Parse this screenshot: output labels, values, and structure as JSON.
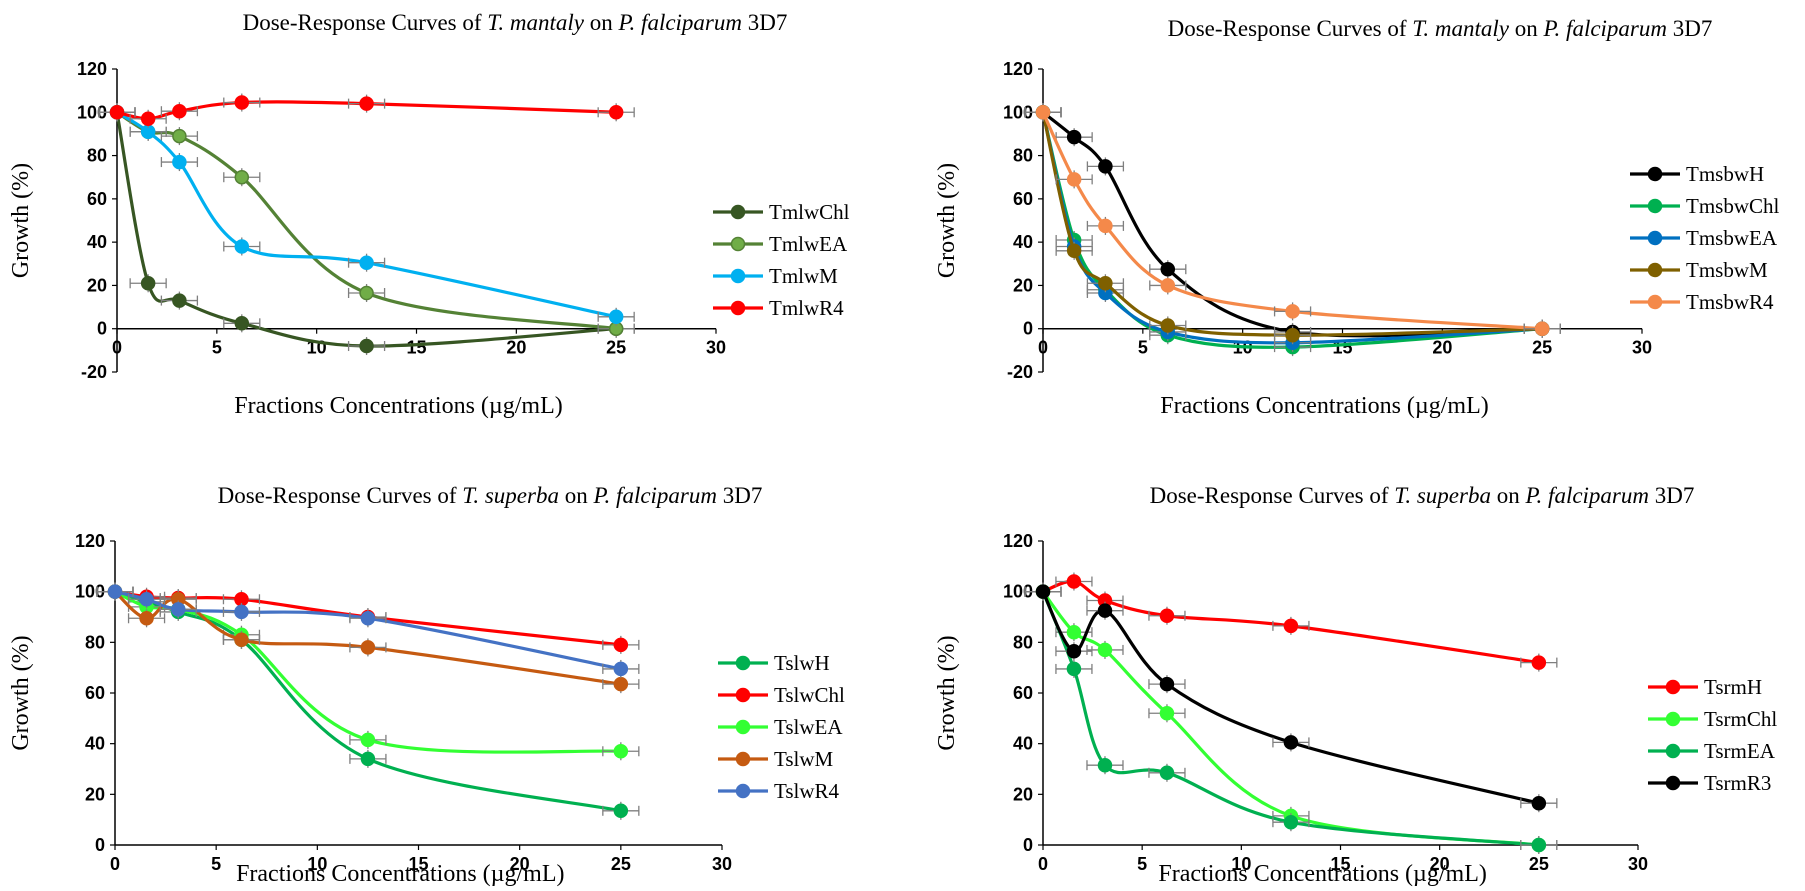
{
  "chart_data": [
    {
      "type": "line",
      "title_parts": [
        {
          "text": "Dose-Response Curves of ",
          "italic": false
        },
        {
          "text": "T. mantaly",
          "italic": true
        },
        {
          "text": " on ",
          "italic": false
        },
        {
          "text": "P. falciparum",
          "italic": true
        },
        {
          "text": " 3D7",
          "italic": false
        }
      ],
      "xlabel": "Fractions Concentrations (µg/mL)",
      "ylabel": "Growth (%)",
      "xlim": [
        0,
        30
      ],
      "ylim": [
        -20,
        120
      ],
      "xticks": [
        0,
        5,
        10,
        15,
        20,
        25,
        30
      ],
      "yticks": [
        -20,
        0,
        20,
        40,
        60,
        80,
        100,
        120
      ],
      "legend_position": "right",
      "x": [
        0,
        1.56,
        3.125,
        6.25,
        12.5,
        25
      ],
      "series": [
        {
          "name": "TmlwChl",
          "color": "#375623",
          "fill": "#375623",
          "values": [
            100,
            21,
            13,
            2.5,
            -8,
            0
          ]
        },
        {
          "name": "TmlwEA",
          "color": "#548235",
          "fill": "#70ad47",
          "values": [
            100,
            91,
            89,
            70,
            16.5,
            0
          ]
        },
        {
          "name": "TmlwM",
          "color": "#00b0f0",
          "fill": "#00b0f0",
          "values": [
            100,
            91,
            77,
            38,
            30.5,
            5.5
          ]
        },
        {
          "name": "TmlwR4",
          "color": "#ff0000",
          "fill": "#ff0000",
          "values": [
            100,
            97,
            100.5,
            104.5,
            104,
            100
          ]
        }
      ]
    },
    {
      "type": "line",
      "title_parts": [
        {
          "text": "Dose-Response Curves of ",
          "italic": false
        },
        {
          "text": "T. mantaly",
          "italic": true
        },
        {
          "text": " on ",
          "italic": false
        },
        {
          "text": "P. falciparum",
          "italic": true
        },
        {
          "text": " 3D7",
          "italic": false
        }
      ],
      "xlabel": "Fractions Concentrations (µg/mL)",
      "ylabel": "Growth (%)",
      "xlim": [
        0,
        30
      ],
      "ylim": [
        -20,
        120
      ],
      "xticks": [
        0,
        5,
        10,
        15,
        20,
        25,
        30
      ],
      "yticks": [
        -20,
        0,
        20,
        40,
        60,
        80,
        100,
        120
      ],
      "legend_position": "right",
      "x": [
        0,
        1.56,
        3.125,
        6.25,
        12.5,
        25
      ],
      "series": [
        {
          "name": "TmsbwH",
          "color": "#000000",
          "fill": "#000000",
          "values": [
            100,
            88.5,
            75,
            27.5,
            -1.5,
            0
          ]
        },
        {
          "name": "TmsbwChl",
          "color": "#00b050",
          "fill": "#00b050",
          "values": [
            100,
            41,
            18,
            -3,
            -8.5,
            0
          ]
        },
        {
          "name": "TmsbwEA",
          "color": "#0070c0",
          "fill": "#0070c0",
          "values": [
            100,
            38,
            16.5,
            -1.5,
            -6.5,
            0
          ]
        },
        {
          "name": "TmsbwM",
          "color": "#7f6000",
          "fill": "#7f6000",
          "values": [
            100,
            36,
            21,
            1.5,
            -3,
            0
          ]
        },
        {
          "name": "TmsbwR4",
          "color": "#f4894a",
          "fill": "#f4894a",
          "values": [
            100,
            69,
            47.5,
            20,
            8,
            0
          ]
        }
      ]
    },
    {
      "type": "line",
      "title_parts": [
        {
          "text": "Dose-Response Curves of ",
          "italic": false
        },
        {
          "text": "T. superba",
          "italic": true
        },
        {
          "text": " on ",
          "italic": false
        },
        {
          "text": "P. falciparum",
          "italic": true
        },
        {
          "text": " 3D7",
          "italic": false
        }
      ],
      "xlabel": "Fractions Concentrations (µg/mL)",
      "ylabel": "Growth (%)",
      "xlim": [
        0,
        30
      ],
      "ylim": [
        0,
        120
      ],
      "xticks": [
        0,
        5,
        10,
        15,
        20,
        25,
        30
      ],
      "yticks": [
        0,
        20,
        40,
        60,
        80,
        100,
        120
      ],
      "legend_position": "right",
      "x": [
        0,
        1.56,
        3.125,
        6.25,
        12.5,
        25
      ],
      "series": [
        {
          "name": "TslwH",
          "color": "#00b050",
          "fill": "#00b050",
          "values": [
            100,
            96,
            92,
            81,
            34,
            13.5
          ]
        },
        {
          "name": "TslwChl",
          "color": "#ff0000",
          "fill": "#ff0000",
          "values": [
            100,
            98,
            97.5,
            97,
            90,
            79
          ]
        },
        {
          "name": "TslwEA",
          "color": "#33ff33",
          "fill": "#33ff33",
          "values": [
            100,
            94,
            93,
            83,
            41.5,
            37
          ]
        },
        {
          "name": "TslwM",
          "color": "#c55a11",
          "fill": "#c55a11",
          "values": [
            100,
            89.5,
            97,
            81,
            78,
            63.5
          ]
        },
        {
          "name": "TslwR4",
          "color": "#4472c4",
          "fill": "#4472c4",
          "values": [
            100,
            97,
            93,
            92,
            89.5,
            69.5
          ]
        }
      ]
    },
    {
      "type": "line",
      "title_parts": [
        {
          "text": "Dose-Response Curves of ",
          "italic": false
        },
        {
          "text": "T. superba",
          "italic": true
        },
        {
          "text": " on ",
          "italic": false
        },
        {
          "text": "P. falciparum",
          "italic": true
        },
        {
          "text": " 3D7",
          "italic": false
        }
      ],
      "xlabel": "Fractions Concentrations (µg/mL)",
      "ylabel": "Growth (%)",
      "xlim": [
        0,
        30
      ],
      "ylim": [
        0,
        120
      ],
      "xticks": [
        0,
        5,
        10,
        15,
        20,
        25,
        30
      ],
      "yticks": [
        0,
        20,
        40,
        60,
        80,
        100,
        120
      ],
      "legend_position": "right",
      "x": [
        0,
        1.56,
        3.125,
        6.25,
        12.5,
        25
      ],
      "series": [
        {
          "name": "TsrmH",
          "color": "#ff0000",
          "fill": "#ff0000",
          "values": [
            100,
            104,
            96.5,
            90.5,
            86.5,
            72
          ]
        },
        {
          "name": "TsrmChl",
          "color": "#33ff33",
          "fill": "#33ff33",
          "values": [
            100,
            84,
            77,
            52,
            11.5,
            0
          ]
        },
        {
          "name": "TsrmEA",
          "color": "#00b050",
          "fill": "#00b050",
          "values": [
            100,
            69.5,
            31.5,
            28.5,
            9,
            0
          ]
        },
        {
          "name": "TsrmR3",
          "color": "#000000",
          "fill": "#000000",
          "values": [
            100,
            76.5,
            92.5,
            63.5,
            40.5,
            16.5
          ]
        }
      ]
    }
  ]
}
